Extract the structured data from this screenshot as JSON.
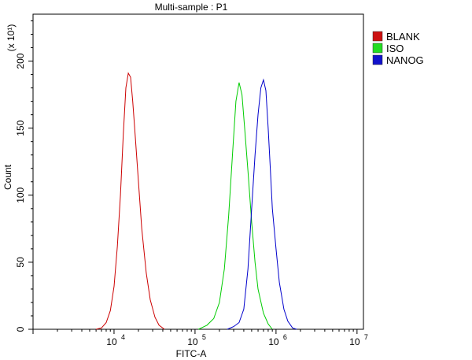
{
  "chart_data": {
    "type": "line",
    "title": "Multi-sample : P1",
    "xlabel": "FITC-A",
    "ylabel": "Count",
    "y_multiplier": "(x 10¹)",
    "x_scale": "log",
    "xlim": [
      1000,
      12000000
    ],
    "ylim": [
      0,
      235
    ],
    "x_ticks": [
      {
        "value": 10000,
        "base": "10",
        "exp": "4"
      },
      {
        "value": 100000,
        "base": "10",
        "exp": "5"
      },
      {
        "value": 1000000,
        "base": "10",
        "exp": "6"
      },
      {
        "value": 10000000,
        "base": "10",
        "exp": "7"
      }
    ],
    "y_ticks": [
      0,
      50,
      100,
      150,
      200
    ],
    "legend_position": "top-right",
    "series": [
      {
        "name": "BLANK",
        "color": "#cc0000",
        "legend_fill": "#cc1111",
        "points": [
          [
            6000,
            0
          ],
          [
            7000,
            1
          ],
          [
            8000,
            5
          ],
          [
            9000,
            14
          ],
          [
            10000,
            32
          ],
          [
            11000,
            62
          ],
          [
            12000,
            100
          ],
          [
            13000,
            145
          ],
          [
            14000,
            180
          ],
          [
            15000,
            191
          ],
          [
            16000,
            188
          ],
          [
            17000,
            170
          ],
          [
            18000,
            150
          ],
          [
            20000,
            110
          ],
          [
            22000,
            75
          ],
          [
            25000,
            42
          ],
          [
            28000,
            22
          ],
          [
            32000,
            9
          ],
          [
            36000,
            3
          ],
          [
            42000,
            0
          ]
        ]
      },
      {
        "name": "ISO",
        "color": "#00cc00",
        "legend_fill": "#22dd22",
        "points": [
          [
            110000,
            0
          ],
          [
            140000,
            3
          ],
          [
            170000,
            8
          ],
          [
            200000,
            20
          ],
          [
            230000,
            45
          ],
          [
            260000,
            85
          ],
          [
            290000,
            130
          ],
          [
            320000,
            170
          ],
          [
            350000,
            184
          ],
          [
            380000,
            175
          ],
          [
            410000,
            150
          ],
          [
            450000,
            118
          ],
          [
            500000,
            80
          ],
          [
            550000,
            50
          ],
          [
            600000,
            30
          ],
          [
            700000,
            12
          ],
          [
            800000,
            4
          ],
          [
            900000,
            0
          ]
        ]
      },
      {
        "name": "NANOG",
        "color": "#0000cc",
        "legend_fill": "#1111cc",
        "points": [
          [
            250000,
            0
          ],
          [
            300000,
            2
          ],
          [
            350000,
            5
          ],
          [
            400000,
            15
          ],
          [
            450000,
            45
          ],
          [
            500000,
            90
          ],
          [
            550000,
            130
          ],
          [
            600000,
            160
          ],
          [
            650000,
            180
          ],
          [
            700000,
            186
          ],
          [
            750000,
            178
          ],
          [
            800000,
            150
          ],
          [
            850000,
            120
          ],
          [
            900000,
            90
          ],
          [
            1000000,
            60
          ],
          [
            1100000,
            35
          ],
          [
            1250000,
            15
          ],
          [
            1400000,
            6
          ],
          [
            1600000,
            1
          ],
          [
            1800000,
            0
          ]
        ]
      }
    ]
  }
}
